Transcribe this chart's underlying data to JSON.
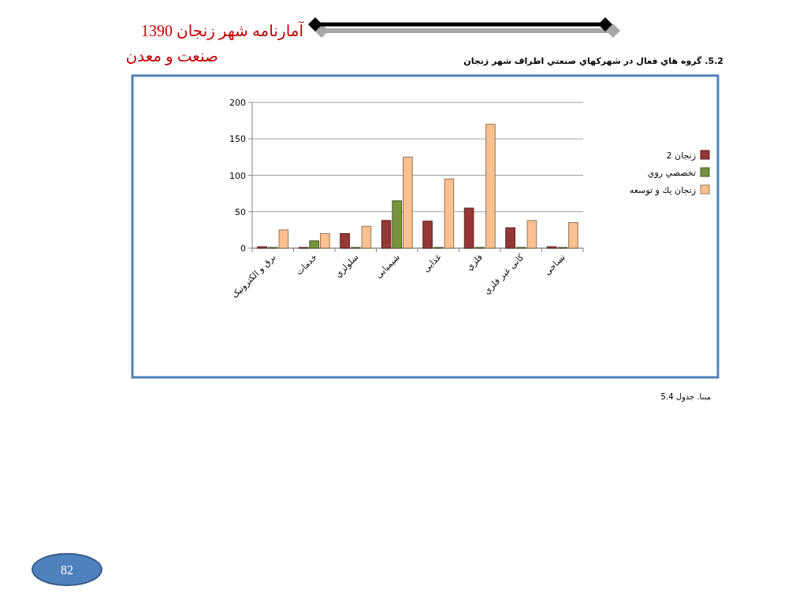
{
  "chart_data": {
    "type": "bar",
    "title": "5.2. گروه هاي فعال در شهرکهاي صنعتي اطراف شهر زنجان",
    "categories": [
      "برق و الکترونیک",
      "خدمات",
      "سلولزي",
      "شیمیایی",
      "غذایی",
      "فلزي",
      "کانی غیر فلزي",
      "نساجی"
    ],
    "series": [
      {
        "name": "زنجان 2",
        "color": "#953735",
        "values": [
          2,
          1,
          20,
          38,
          37,
          55,
          28,
          2
        ]
      },
      {
        "name": "تخصصي روي",
        "color": "#77933c",
        "values": [
          1,
          10,
          1,
          65,
          1,
          1,
          1,
          1
        ]
      },
      {
        "name": "زنجان يك و توسعه",
        "color": "#fac08f",
        "values": [
          25,
          20,
          30,
          125,
          95,
          170,
          38,
          35
        ]
      }
    ],
    "ylim": [
      0,
      200
    ],
    "yticks": [
      0,
      50,
      100,
      150,
      200
    ],
    "grid": "y",
    "legend": "right",
    "annotations": [
      "آمارنامه شهر زنجان 1390",
      "صنعت و معدن",
      "مبنا. جدول 5.4",
      "82"
    ]
  }
}
